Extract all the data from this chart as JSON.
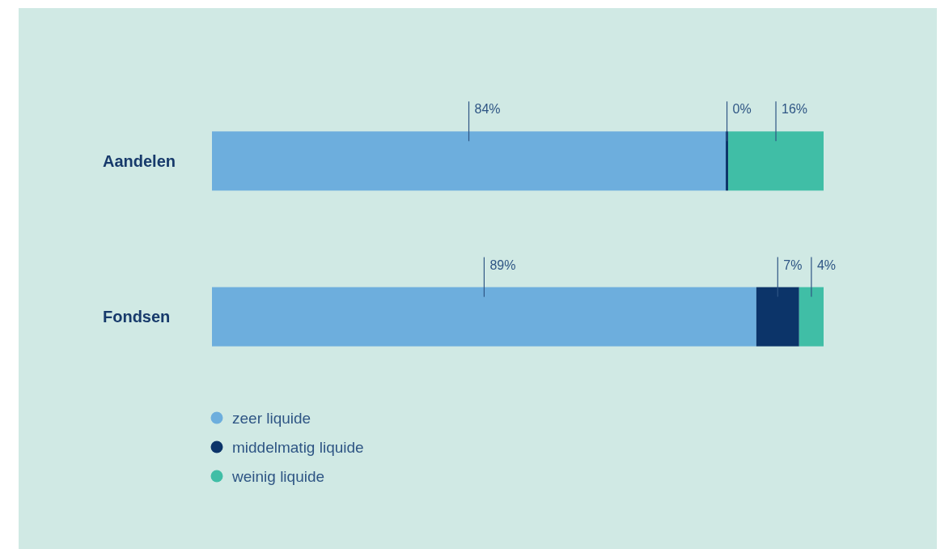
{
  "chart_data": {
    "type": "bar",
    "orientation": "horizontal",
    "stacked": true,
    "categories": [
      "Aandelen",
      "Fondsen"
    ],
    "xlim": [
      0,
      100
    ],
    "tick_labels": "y",
    "legend": "bottom",
    "series": [
      {
        "name": "zeer liquide",
        "color": "#6daedd",
        "values": [
          84,
          89
        ],
        "value_labels": [
          "84%",
          "89%"
        ]
      },
      {
        "name": "middelmatig liquide",
        "color": "#0c3469",
        "values": [
          0.4,
          7
        ],
        "value_labels": [
          "0%",
          "7%"
        ]
      },
      {
        "name": "weinig liquide",
        "color": "#40bea6",
        "values": [
          15.6,
          4
        ],
        "value_labels": [
          "16%",
          "4%"
        ]
      }
    ]
  }
}
